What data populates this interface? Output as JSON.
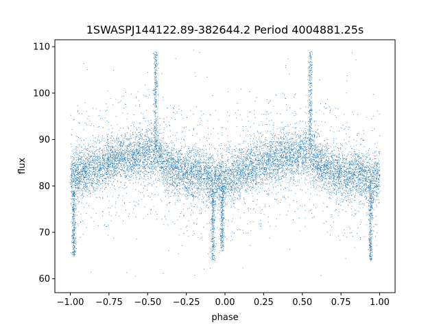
{
  "chart_data": {
    "type": "scatter",
    "title": "1SWASPJ144122.89-382644.2 Period 4004881.25s",
    "xlabel": "phase",
    "ylabel": "flux",
    "xlim": [
      -1.1,
      1.1
    ],
    "ylim": [
      57,
      111.5
    ],
    "x_ticks": [
      -1.0,
      -0.75,
      -0.5,
      -0.25,
      0.0,
      0.25,
      0.5,
      0.75,
      1.0
    ],
    "x_tick_labels": [
      "−1.00",
      "−0.75",
      "−0.50",
      "−0.25",
      "0.00",
      "0.25",
      "0.50",
      "0.75",
      "1.00"
    ],
    "y_ticks": [
      60,
      70,
      80,
      90,
      100,
      110
    ],
    "y_tick_labels": [
      "60",
      "70",
      "80",
      "90",
      "100",
      "110"
    ],
    "grid": false,
    "marker_color": "#1f77b4",
    "series": [
      {
        "profile": {
          "x": [
            -1.0,
            -0.9,
            -0.8,
            -0.7,
            -0.6,
            -0.5,
            -0.45,
            -0.4,
            -0.3,
            -0.2,
            -0.1,
            -0.05,
            0.0,
            0.1,
            0.2,
            0.3,
            0.4,
            0.5,
            0.55,
            0.6,
            0.7,
            0.8,
            0.9,
            0.95,
            1.0
          ],
          "y": [
            82,
            83,
            84.5,
            86,
            86.5,
            87,
            87,
            85,
            83,
            82.5,
            82,
            81,
            81.5,
            83,
            84.5,
            86,
            86.5,
            87,
            87,
            85,
            83,
            82.5,
            82,
            81,
            82
          ]
        },
        "scatter_range": [
          5,
          14
        ],
        "features": [
          {
            "x": -0.45,
            "y_range": [
              88,
              109
            ]
          },
          {
            "x": 0.55,
            "y_range": [
              88,
              109
            ]
          },
          {
            "x": -0.02,
            "y_range": [
              66,
              80
            ]
          },
          {
            "x": 0.94,
            "y_range": [
              64,
              80
            ]
          },
          {
            "x": -0.98,
            "y_range": [
              65,
              79
            ]
          },
          {
            "x": -0.08,
            "y_range": [
              64,
              79
            ]
          }
        ]
      }
    ]
  }
}
